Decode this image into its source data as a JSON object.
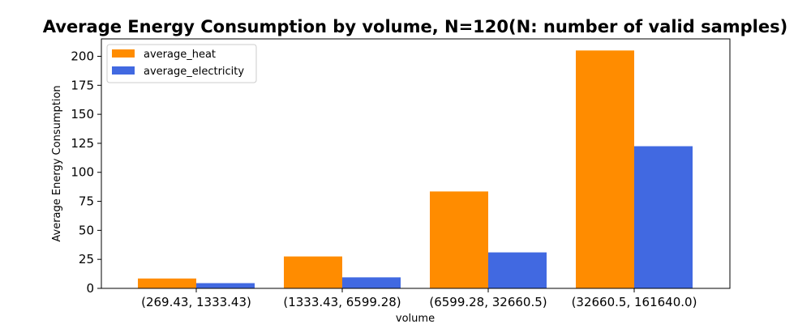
{
  "chart_data": {
    "type": "bar",
    "title": "Average Energy Consumption by volume, N=120(N: number of valid samples)",
    "xlabel": "volume",
    "ylabel": "Average Energy Consumption",
    "categories": [
      "(269.43, 1333.43)",
      "(1333.43, 6599.28)",
      "(6599.28, 32660.5)",
      "(32660.5, 161640.0)"
    ],
    "series": [
      {
        "name": "average_heat",
        "color": "#ff8c00",
        "values": [
          8.5,
          27.5,
          83.5,
          205
        ]
      },
      {
        "name": "average_electricity",
        "color": "#4169e1",
        "values": [
          4.5,
          9.5,
          31,
          122.5
        ]
      }
    ],
    "yticks": [
      0,
      25,
      50,
      75,
      100,
      125,
      150,
      175,
      200
    ],
    "ylim": [
      0,
      215
    ],
    "grid": false,
    "legend": "top-left"
  }
}
